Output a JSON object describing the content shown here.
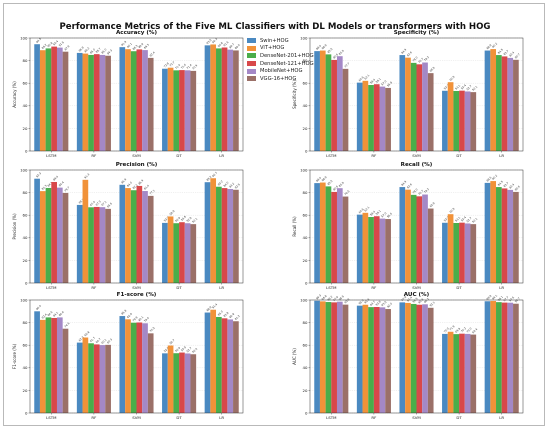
{
  "title": "Performance Metrics of the Five ML Classifiers with DL Models or transformers with HOG",
  "colors": {
    "Swin+HOG": "#4a89c1",
    "ViT+HOG": "#f19239",
    "DenseNet-201+HOG": "#4aad4a",
    "DenseNet-121+HOG": "#d8484a",
    "MobileNet+HOG": "#a488c6",
    "VGG-16+HOG": "#9b7068"
  },
  "legend": [
    "Swin+HOG",
    "ViT+HOG",
    "DenseNet-201+HOG",
    "DenseNet-121+HOG",
    "MobileNet+HOG",
    "VGG-16+HOG"
  ],
  "chart_data": [
    {
      "type": "bar",
      "title": "Accuracy (%)",
      "ylabel": "Accuracy (%)",
      "ylim": [
        0,
        100
      ],
      "yticks": [
        0,
        20,
        40,
        60,
        80,
        100
      ],
      "categories": [
        "LSTM",
        "RF",
        "SVM",
        "DT",
        "LR"
      ],
      "series": [
        {
          "name": "Swin+HOG",
          "values": [
            94.5,
            86.8,
            91.9,
            72.8,
            93.5
          ]
        },
        {
          "name": "ViT+HOG",
          "values": [
            89.2,
            86.2,
            90.1,
            73.7,
            94.3
          ]
        },
        {
          "name": "DenseNet-201+HOG",
          "values": [
            90.8,
            85.0,
            88.3,
            71.4,
            90.8
          ]
        },
        {
          "name": "DenseNet-121+HOG",
          "values": [
            92.4,
            85.7,
            89.9,
            71.6,
            91.6
          ]
        },
        {
          "name": "MobileNet+HOG",
          "values": [
            91.5,
            85.0,
            89.3,
            71.4,
            89.7
          ]
        },
        {
          "name": "VGG-16+HOG",
          "values": [
            87.9,
            84.3,
            82.4,
            70.9,
            89.0
          ]
        }
      ]
    },
    {
      "type": "bar",
      "title": "Specificity (%)",
      "ylabel": "Specificity (%)",
      "ylim": [
        0,
        100
      ],
      "yticks": [
        0,
        20,
        40,
        60,
        80,
        100
      ],
      "categories": [
        "LSTM",
        "RF",
        "SVM",
        "DT",
        "LR"
      ],
      "series": [
        {
          "name": "Swin+HOG",
          "values": [
            88.4,
            60.5,
            84.9,
            53.3,
            88.9
          ]
        },
        {
          "name": "ViT+HOG",
          "values": [
            88.9,
            62.1,
            82.6,
            60.9,
            90.2
          ]
        },
        {
          "name": "DenseNet-201+HOG",
          "values": [
            85.5,
            58.4,
            78.0,
            53.1,
            84.9
          ]
        },
        {
          "name": "DenseNet-121+HOG",
          "values": [
            80.6,
            59.1,
            76.7,
            53.4,
            83.7
          ]
        },
        {
          "name": "MobileNet+HOG",
          "values": [
            83.9,
            57.0,
            78.3,
            52.7,
            82.4
          ]
        },
        {
          "name": "VGG-16+HOG",
          "values": [
            72.7,
            55.8,
            68.9,
            52.1,
            80.7
          ]
        }
      ]
    },
    {
      "type": "bar",
      "title": "Precision (%)",
      "ylabel": "Precision (%)",
      "ylim": [
        0,
        100
      ],
      "yticks": [
        0,
        20,
        40,
        60,
        80,
        100
      ],
      "categories": [
        "LSTM",
        "RF",
        "SVM",
        "DT",
        "LR"
      ],
      "series": [
        {
          "name": "Swin+HOG",
          "values": [
            92.3,
            69.1,
            86.9,
            53.2,
            89.2
          ]
        },
        {
          "name": "ViT+HOG",
          "values": [
            81.3,
            91.3,
            84.0,
            58.9,
            92.7
          ]
        },
        {
          "name": "DenseNet-201+HOG",
          "values": [
            84.1,
            67.0,
            82.1,
            52.9,
            85.2
          ]
        },
        {
          "name": "DenseNet-121+HOG",
          "values": [
            89.4,
            67.3,
            85.9,
            53.8,
            84.0
          ]
        },
        {
          "name": "MobileNet+HOG",
          "values": [
            84.4,
            67.1,
            81.4,
            52.9,
            83.2
          ]
        },
        {
          "name": "VGG-16+HOG",
          "values": [
            79.7,
            65.6,
            77.1,
            52.1,
            82.5
          ]
        }
      ]
    },
    {
      "type": "bar",
      "title": "Recall (%)",
      "ylabel": "Recall (%)",
      "ylim": [
        0,
        100
      ],
      "yticks": [
        0,
        20,
        40,
        60,
        80,
        100
      ],
      "categories": [
        "LSTM",
        "RF",
        "SVM",
        "DT",
        "LR"
      ],
      "series": [
        {
          "name": "Swin+HOG",
          "values": [
            88.4,
            60.5,
            84.9,
            53.3,
            88.6
          ]
        },
        {
          "name": "ViT+HOG",
          "values": [
            88.9,
            62.1,
            82.6,
            60.9,
            90.2
          ]
        },
        {
          "name": "DenseNet-201+HOG",
          "values": [
            85.5,
            58.4,
            78.0,
            53.1,
            84.9
          ]
        },
        {
          "name": "DenseNet-121+HOG",
          "values": [
            80.6,
            59.1,
            76.7,
            53.4,
            83.7
          ]
        },
        {
          "name": "MobileNet+HOG",
          "values": [
            83.9,
            57.0,
            78.3,
            52.7,
            82.4
          ]
        },
        {
          "name": "VGG-16+HOG",
          "values": [
            76.5,
            56.6,
            65.9,
            52.1,
            80.6
          ]
        }
      ]
    },
    {
      "type": "bar",
      "title": "F1-score (%)",
      "ylabel": "F1-score (%)",
      "ylim": [
        0,
        100
      ],
      "yticks": [
        0,
        20,
        40,
        60,
        80,
        100
      ],
      "categories": [
        "LSTM",
        "RF",
        "SVM",
        "DT",
        "LR"
      ],
      "series": [
        {
          "name": "Swin+HOG",
          "values": [
            90.0,
            62.3,
            85.8,
            52.8,
            88.9
          ]
        },
        {
          "name": "ViT+HOG",
          "values": [
            82.4,
            66.8,
            82.9,
            59.7,
            91.4
          ]
        },
        {
          "name": "DenseNet-201+HOG",
          "values": [
            84.6,
            61.7,
            79.9,
            52.9,
            85.0
          ]
        },
        {
          "name": "DenseNet-121+HOG",
          "values": [
            84.1,
            60.7,
            80.1,
            53.5,
            83.8
          ]
        },
        {
          "name": "MobileNet+HOG",
          "values": [
            84.6,
            60.1,
            79.4,
            52.7,
            82.8
          ]
        },
        {
          "name": "VGG-16+HOG",
          "values": [
            74.6,
            60.3,
            70.5,
            52.0,
            81.2
          ]
        }
      ]
    },
    {
      "type": "bar",
      "title": "AUC (%)",
      "ylabel": "AUC (%)",
      "ylim": [
        0,
        100
      ],
      "yticks": [
        0,
        20,
        40,
        60,
        80,
        100
      ],
      "categories": [
        "LSTM",
        "RF",
        "SVM",
        "DT",
        "LR"
      ],
      "series": [
        {
          "name": "Swin+HOG",
          "values": [
            99.3,
            95.0,
            97.9,
            70.0,
            98.9
          ]
        },
        {
          "name": "ViT+HOG",
          "values": [
            98.8,
            95.8,
            97.4,
            71.9,
            99.1
          ]
        },
        {
          "name": "DenseNet-201+HOG",
          "values": [
            98.2,
            93.7,
            96.5,
            69.8,
            98.1
          ]
        },
        {
          "name": "DenseNet-121+HOG",
          "values": [
            97.9,
            93.8,
            95.8,
            70.2,
            97.7
          ]
        },
        {
          "name": "MobileNet+HOG",
          "values": [
            98.5,
            93.5,
            96.2,
            70.0,
            97.6
          ]
        },
        {
          "name": "VGG-16+HOG",
          "values": [
            95.9,
            92.0,
            93.1,
            69.4,
            96.7
          ]
        }
      ]
    }
  ]
}
